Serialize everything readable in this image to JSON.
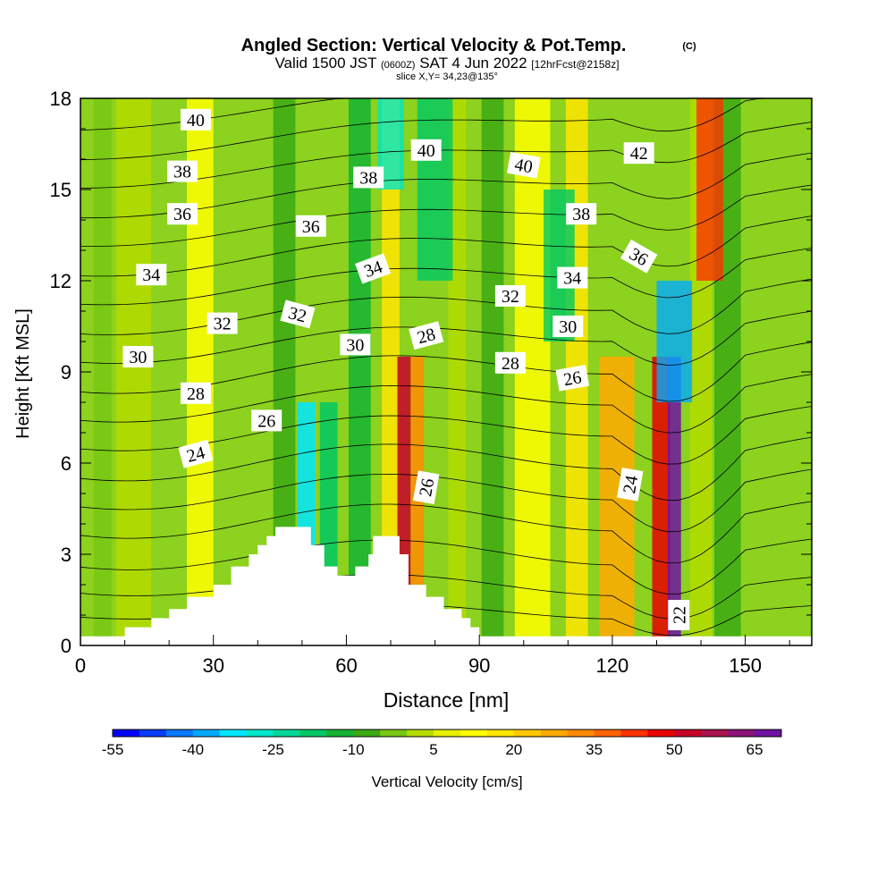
{
  "title": {
    "main": "Angled Section: Vertical Velocity & Pot.Temp.",
    "copyright_mark": "(C)",
    "valid_prefix": "Valid 1500 JST",
    "valid_utc": "(0600Z)",
    "valid_date": "SAT 4 Jun 2022",
    "forecast_tag": "[12hrFcst@2158z]",
    "slice": "slice X,Y= 34,23@135°"
  },
  "chart_data": {
    "type": "heatmap",
    "xlabel": "Distance [nm]",
    "ylabel": "Height [Kft MSL]",
    "xlim": [
      0,
      165
    ],
    "ylim": [
      0,
      18
    ],
    "x_ticks": [
      0,
      30,
      60,
      90,
      120,
      150
    ],
    "y_ticks": [
      0,
      3,
      6,
      9,
      12,
      15,
      18
    ],
    "colorbar": {
      "label": "Vertical Velocity [cm/s]",
      "min": -55,
      "max": 70,
      "step": 5,
      "tick_labels": [
        "-55",
        "-40",
        "-25",
        "-10",
        "5",
        "20",
        "35",
        "50",
        "65"
      ],
      "colors": [
        "#0000ff",
        "#0a3cff",
        "#0a78ff",
        "#00aaff",
        "#00e6ff",
        "#00e6c8",
        "#00d796",
        "#00c864",
        "#14b432",
        "#3caa14",
        "#78c814",
        "#b4dc00",
        "#e6f000",
        "#ffff00",
        "#ffe600",
        "#ffc800",
        "#ffaa00",
        "#ff8c00",
        "#ff6400",
        "#ff3200",
        "#e60000",
        "#c80028",
        "#aa1450",
        "#8c1478",
        "#6e14a0"
      ]
    },
    "vertical_velocity_columns": [
      {
        "x": 5,
        "w": 4,
        "value": -5
      },
      {
        "x": 12,
        "w": 8,
        "value": 0
      },
      {
        "x": 27,
        "w": 6,
        "value": 12
      },
      {
        "x": 46,
        "w": 5,
        "value": -10
      },
      {
        "x": 51,
        "w": 4,
        "value": -35
      },
      {
        "x": 56,
        "w": 4,
        "value": -20
      },
      {
        "x": 63,
        "w": 5,
        "value": -12
      },
      {
        "x": 70,
        "w": 4,
        "value": 15
      },
      {
        "x": 73,
        "w": 3,
        "value": 50
      },
      {
        "x": 76,
        "w": 3,
        "value": 30
      },
      {
        "x": 85,
        "w": 4,
        "value": 0
      },
      {
        "x": 93,
        "w": 5,
        "value": -8
      },
      {
        "x": 102,
        "w": 8,
        "value": 12
      },
      {
        "x": 112,
        "w": 5,
        "value": 15
      },
      {
        "x": 121,
        "w": 8,
        "value": 25
      },
      {
        "x": 131,
        "w": 4,
        "value": 45
      },
      {
        "x": 134,
        "w": 3,
        "value": 65
      },
      {
        "x": 140,
        "w": 5,
        "value": 0
      },
      {
        "x": 146,
        "w": 6,
        "value": -10
      }
    ],
    "vertical_velocity_upper": [
      {
        "x": 70,
        "w": 6,
        "y0": 15,
        "y1": 18,
        "value": -30
      },
      {
        "x": 80,
        "w": 8,
        "y0": 12,
        "y1": 18,
        "value": -20
      },
      {
        "x": 108,
        "w": 7,
        "y0": 10,
        "y1": 15,
        "value": -20
      },
      {
        "x": 134,
        "w": 8,
        "y0": 8,
        "y1": 12,
        "value": -40
      },
      {
        "x": 142,
        "w": 6,
        "y0": 12,
        "y1": 18,
        "value": 40
      }
    ],
    "terrain": [
      [
        0,
        0.3
      ],
      [
        10,
        0.3
      ],
      [
        10,
        0.6
      ],
      [
        16,
        0.6
      ],
      [
        16,
        0.9
      ],
      [
        20,
        0.9
      ],
      [
        20,
        1.2
      ],
      [
        24,
        1.2
      ],
      [
        24,
        1.6
      ],
      [
        30,
        1.6
      ],
      [
        30,
        2.0
      ],
      [
        34,
        2.0
      ],
      [
        34,
        2.6
      ],
      [
        38,
        2.6
      ],
      [
        38,
        3.0
      ],
      [
        40,
        3.0
      ],
      [
        40,
        3.3
      ],
      [
        42,
        3.3
      ],
      [
        42,
        3.6
      ],
      [
        44,
        3.6
      ],
      [
        44,
        3.9
      ],
      [
        52,
        3.9
      ],
      [
        52,
        3.3
      ],
      [
        55,
        3.3
      ],
      [
        55,
        2.6
      ],
      [
        58,
        2.6
      ],
      [
        58,
        2.3
      ],
      [
        62,
        2.3
      ],
      [
        62,
        2.6
      ],
      [
        65,
        2.6
      ],
      [
        65,
        3.0
      ],
      [
        66,
        3.0
      ],
      [
        66,
        3.6
      ],
      [
        72,
        3.6
      ],
      [
        72,
        3.0
      ],
      [
        74,
        3.0
      ],
      [
        74,
        2.0
      ],
      [
        78,
        2.0
      ],
      [
        78,
        1.6
      ],
      [
        82,
        1.6
      ],
      [
        82,
        1.2
      ],
      [
        86,
        1.2
      ],
      [
        86,
        0.9
      ],
      [
        88,
        0.9
      ],
      [
        88,
        0.6
      ],
      [
        90,
        0.6
      ],
      [
        90,
        0.3
      ],
      [
        165,
        0.3
      ]
    ],
    "theta_contours": [
      {
        "base": 21,
        "amp": 0.5,
        "lift": 0.0
      },
      {
        "base": 22.2,
        "amp": 0.7,
        "lift": 0.0
      },
      {
        "base": 23.5,
        "amp": 0.9,
        "lift": 0.2
      },
      {
        "base": 25,
        "amp": 1.0,
        "lift": 0.3
      },
      {
        "base": 26.3,
        "amp": 1.0,
        "lift": 0.4
      },
      {
        "base": 27.6,
        "amp": 1.0,
        "lift": 0.5
      },
      {
        "base": 28.9,
        "amp": 0.9,
        "lift": 0.6
      },
      {
        "base": 30.2,
        "amp": 0.9,
        "lift": 0.7
      },
      {
        "base": 31.5,
        "amp": 0.9,
        "lift": 0.8
      },
      {
        "base": 32.8,
        "amp": 0.8,
        "lift": 0.9
      },
      {
        "base": 34.1,
        "amp": 0.8,
        "lift": 1.0
      },
      {
        "base": 35.4,
        "amp": 0.7,
        "lift": 1.1
      },
      {
        "base": 36.7,
        "amp": 0.7,
        "lift": 1.2
      },
      {
        "base": 38,
        "amp": 0.6,
        "lift": 1.3
      },
      {
        "base": 39.3,
        "amp": 0.6,
        "lift": 1.4
      },
      {
        "base": 40.6,
        "amp": 0.5,
        "lift": 1.5
      },
      {
        "base": 41.9,
        "amp": 0.5,
        "lift": 1.6
      },
      {
        "base": 43.2,
        "amp": 0.4,
        "lift": 1.7
      }
    ],
    "contour_labels": [
      {
        "text": "40",
        "x": 26,
        "y": 17.3,
        "angle": 0
      },
      {
        "text": "38",
        "x": 23,
        "y": 15.6,
        "angle": 0
      },
      {
        "text": "36",
        "x": 23,
        "y": 14.2,
        "angle": 0
      },
      {
        "text": "34",
        "x": 16,
        "y": 12.2,
        "angle": 0
      },
      {
        "text": "32",
        "x": 32,
        "y": 10.6,
        "angle": 0
      },
      {
        "text": "30",
        "x": 13,
        "y": 9.5,
        "angle": 0
      },
      {
        "text": "28",
        "x": 26,
        "y": 8.3,
        "angle": 0
      },
      {
        "text": "26",
        "x": 42,
        "y": 7.4,
        "angle": 0
      },
      {
        "text": "24",
        "x": 26,
        "y": 6.3,
        "angle": -15
      },
      {
        "text": "32",
        "x": 49,
        "y": 10.9,
        "angle": 15
      },
      {
        "text": "36",
        "x": 52,
        "y": 13.8,
        "angle": 0
      },
      {
        "text": "38",
        "x": 65,
        "y": 15.4,
        "angle": 0
      },
      {
        "text": "34",
        "x": 66,
        "y": 12.4,
        "angle": -20
      },
      {
        "text": "30",
        "x": 62,
        "y": 9.9,
        "angle": 0
      },
      {
        "text": "40",
        "x": 78,
        "y": 16.3,
        "angle": 0
      },
      {
        "text": "28",
        "x": 78,
        "y": 10.2,
        "angle": -15
      },
      {
        "text": "26",
        "x": 78,
        "y": 5.2,
        "angle": -80
      },
      {
        "text": "40",
        "x": 100,
        "y": 15.8,
        "angle": 10
      },
      {
        "text": "32",
        "x": 97,
        "y": 11.5,
        "angle": 0
      },
      {
        "text": "28",
        "x": 97,
        "y": 9.3,
        "angle": 0
      },
      {
        "text": "34",
        "x": 111,
        "y": 12.1,
        "angle": 0
      },
      {
        "text": "30",
        "x": 110,
        "y": 10.5,
        "angle": 0
      },
      {
        "text": "26",
        "x": 111,
        "y": 8.8,
        "angle": -10
      },
      {
        "text": "38",
        "x": 113,
        "y": 14.2,
        "angle": 0
      },
      {
        "text": "42",
        "x": 126,
        "y": 16.2,
        "angle": 0
      },
      {
        "text": "36",
        "x": 126,
        "y": 12.8,
        "angle": 30
      },
      {
        "text": "24",
        "x": 124,
        "y": 5.3,
        "angle": -80
      },
      {
        "text": "22",
        "x": 135,
        "y": 1.0,
        "angle": -90
      }
    ]
  }
}
